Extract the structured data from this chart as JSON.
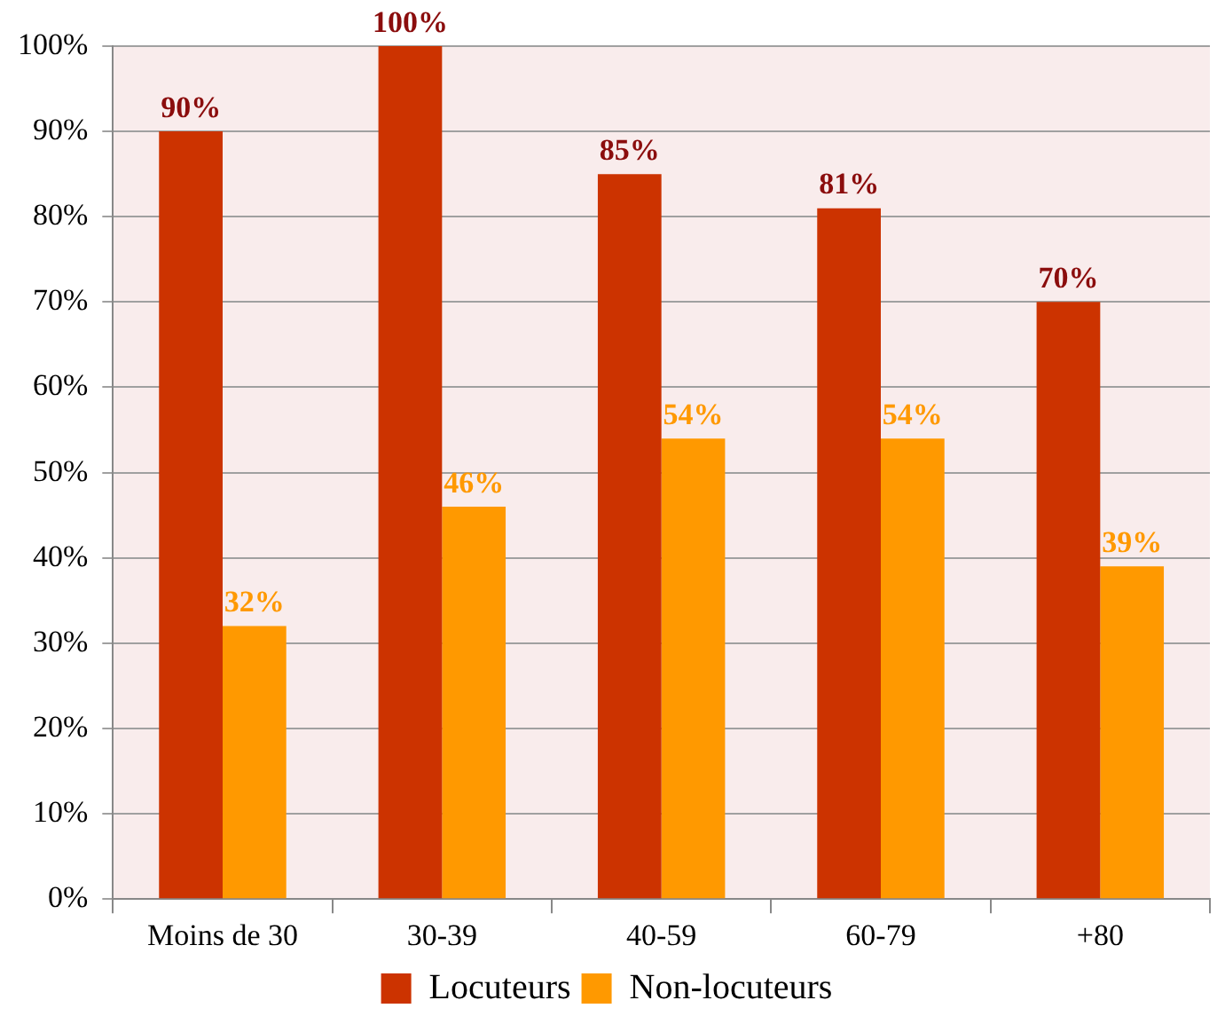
{
  "chart_data": {
    "type": "bar",
    "categories": [
      "Moins de 30",
      "30-39",
      "40-59",
      "60-79",
      "+80"
    ],
    "series": [
      {
        "name": "Locuteurs",
        "color": "#cc3300",
        "values": [
          90,
          100,
          85,
          81,
          70
        ],
        "value_labels": [
          "90%",
          "100%",
          "85%",
          "81%",
          "70%"
        ]
      },
      {
        "name": "Non-locuteurs",
        "color": "#ff9900",
        "values": [
          32,
          46,
          54,
          54,
          39
        ],
        "value_labels": [
          "32%",
          "46%",
          "54%",
          "54%",
          "39%"
        ]
      }
    ],
    "ylim": [
      0,
      100
    ],
    "yticks": [
      {
        "value": 0,
        "label": "0%"
      },
      {
        "value": 10,
        "label": "10%"
      },
      {
        "value": 20,
        "label": "20%"
      },
      {
        "value": 30,
        "label": "30%"
      },
      {
        "value": 40,
        "label": "40%"
      },
      {
        "value": 50,
        "label": "50%"
      },
      {
        "value": 60,
        "label": "60%"
      },
      {
        "value": 70,
        "label": "70%"
      },
      {
        "value": 80,
        "label": "80%"
      },
      {
        "value": 90,
        "label": "90%"
      },
      {
        "value": 100,
        "label": "100%"
      }
    ],
    "grid": "y",
    "legend": "bottom"
  }
}
